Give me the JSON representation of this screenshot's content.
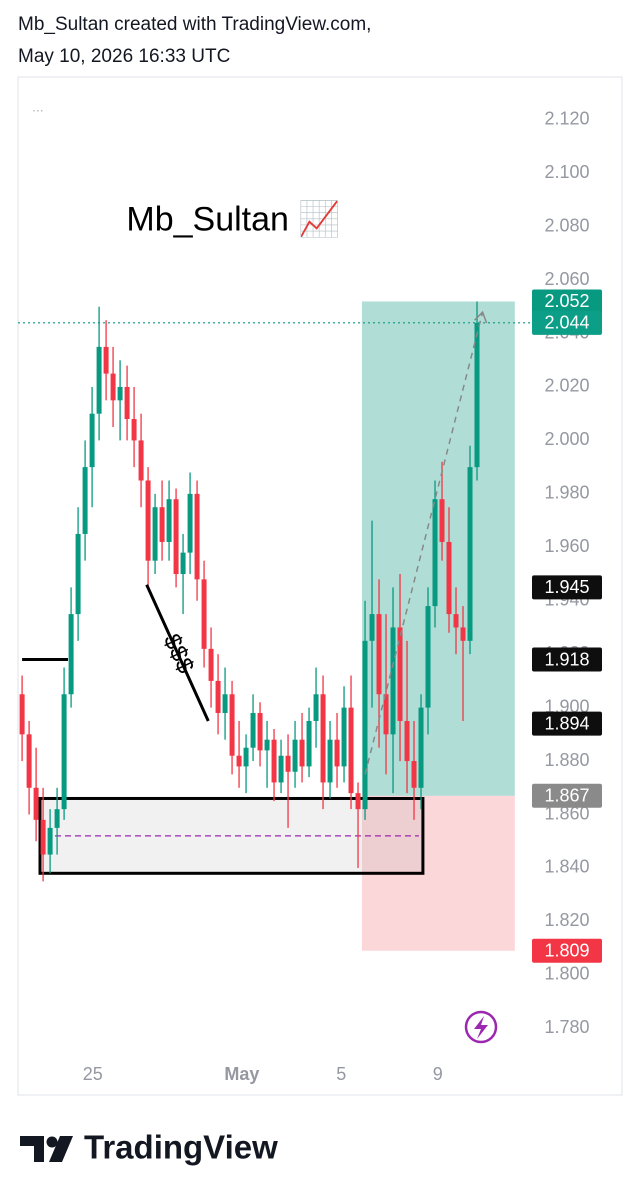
{
  "header": {
    "line1": "Mb_Sultan created with TradingView.com,",
    "line2": "May 10, 2026 16:33 UTC"
  },
  "footer": {
    "brand": "TradingView"
  },
  "chart_data": {
    "type": "candlestick",
    "up_color": "#089981",
    "down_color": "#f23645",
    "ylim": [
      1.77,
      2.136
    ],
    "yticks": [
      {
        "value": 2.12,
        "label": "2.120"
      },
      {
        "value": 2.1,
        "label": "2.100"
      },
      {
        "value": 2.08,
        "label": "2.080"
      },
      {
        "value": 2.06,
        "label": "2.060"
      },
      {
        "value": 2.04,
        "label": "2.040"
      },
      {
        "value": 2.02,
        "label": "2.020"
      },
      {
        "value": 2.0,
        "label": "2.000"
      },
      {
        "value": 1.98,
        "label": "1.980"
      },
      {
        "value": 1.96,
        "label": "1.960"
      },
      {
        "value": 1.94,
        "label": "1.940"
      },
      {
        "value": 1.92,
        "label": "1.920"
      },
      {
        "value": 1.9,
        "label": "1.900"
      },
      {
        "value": 1.88,
        "label": "1.880"
      },
      {
        "value": 1.86,
        "label": "1.860"
      },
      {
        "value": 1.84,
        "label": "1.840"
      },
      {
        "value": 1.82,
        "label": "1.820"
      },
      {
        "value": 1.8,
        "label": "1.800"
      },
      {
        "value": 1.78,
        "label": "1.780"
      }
    ],
    "xlim": [
      -0.3,
      71
    ],
    "xticks": [
      {
        "value": 10.1,
        "label": "25"
      },
      {
        "value": 31.4,
        "label": "May"
      },
      {
        "value": 45.6,
        "label": "5"
      },
      {
        "value": 59.4,
        "label": "9"
      }
    ],
    "open": [
      1.905,
      1.89,
      1.87,
      1.858,
      1.845,
      1.855,
      1.862,
      1.905,
      1.935,
      1.965,
      1.99,
      2.01,
      2.035,
      2.025,
      2.015,
      2.02,
      2.008,
      2.0,
      1.985,
      1.955,
      1.975,
      1.962,
      1.978,
      1.95,
      1.958,
      1.98,
      1.948,
      1.922,
      1.91,
      1.898,
      1.905,
      1.882,
      1.878,
      1.885,
      1.898,
      1.884,
      1.888,
      1.872,
      1.882,
      1.876,
      1.888,
      1.878,
      1.895,
      1.905,
      1.872,
      1.888,
      1.878,
      1.9,
      1.868,
      1.862,
      1.925,
      1.935,
      1.905,
      1.89,
      1.93,
      1.895,
      1.88,
      1.87,
      1.9,
      1.938,
      1.978,
      1.962,
      1.935,
      1.93,
      1.925,
      1.99
    ],
    "high": [
      1.912,
      1.895,
      1.885,
      1.87,
      1.862,
      1.87,
      1.915,
      1.945,
      1.975,
      2.0,
      2.02,
      2.05,
      2.045,
      2.035,
      2.03,
      2.028,
      2.02,
      2.01,
      1.99,
      1.98,
      1.985,
      1.985,
      1.982,
      1.965,
      1.988,
      1.985,
      1.955,
      1.93,
      1.92,
      1.915,
      1.91,
      1.895,
      1.89,
      1.905,
      1.902,
      1.895,
      1.892,
      1.888,
      1.89,
      1.895,
      1.898,
      1.9,
      1.915,
      1.912,
      1.895,
      1.898,
      1.908,
      1.912,
      1.872,
      1.94,
      1.97,
      1.948,
      1.935,
      1.945,
      1.95,
      1.925,
      1.895,
      1.905,
      1.945,
      1.985,
      1.992,
      1.975,
      1.945,
      1.938,
      1.998,
      2.052
    ],
    "low": [
      1.88,
      1.86,
      1.85,
      1.835,
      1.838,
      1.845,
      1.858,
      1.9,
      1.925,
      1.955,
      1.975,
      2.0,
      2.015,
      2.005,
      2.0,
      2.0,
      1.99,
      1.975,
      1.945,
      1.95,
      1.955,
      1.955,
      1.945,
      1.935,
      1.95,
      1.94,
      1.915,
      1.9,
      1.89,
      1.888,
      1.875,
      1.87,
      1.868,
      1.88,
      1.878,
      1.87,
      1.865,
      1.868,
      1.855,
      1.87,
      1.872,
      1.874,
      1.885,
      1.862,
      1.866,
      1.87,
      1.872,
      1.862,
      1.84,
      1.858,
      1.9,
      1.885,
      1.875,
      1.868,
      1.88,
      1.868,
      1.858,
      1.862,
      1.89,
      1.93,
      1.955,
      1.928,
      1.92,
      1.895,
      1.92,
      1.985
    ],
    "close": [
      1.89,
      1.87,
      1.858,
      1.845,
      1.855,
      1.862,
      1.905,
      1.935,
      1.965,
      1.99,
      2.01,
      2.035,
      2.025,
      2.015,
      2.02,
      2.008,
      2.0,
      1.985,
      1.955,
      1.975,
      1.962,
      1.978,
      1.95,
      1.958,
      1.98,
      1.948,
      1.922,
      1.91,
      1.898,
      1.905,
      1.882,
      1.878,
      1.885,
      1.898,
      1.884,
      1.888,
      1.872,
      1.882,
      1.876,
      1.888,
      1.878,
      1.895,
      1.905,
      1.872,
      1.888,
      1.878,
      1.9,
      1.868,
      1.862,
      1.925,
      1.935,
      1.905,
      1.89,
      1.93,
      1.895,
      1.88,
      1.87,
      1.9,
      1.938,
      1.978,
      1.962,
      1.935,
      1.93,
      1.925,
      1.99,
      2.044
    ],
    "position": {
      "x": [
        48.56,
        70.4
      ],
      "entry": 1.867,
      "target": 2.052,
      "stop": 1.809
    },
    "zone": {
      "x": [
        2.56,
        57.27
      ],
      "top": 1.866,
      "bottom": 1.838,
      "mid": 1.852
    },
    "current_line": 2.044,
    "lines": [
      {
        "x": [
          0,
          6.56
        ],
        "y": [
          1.918,
          1.918
        ]
      },
      {
        "x": [
          17.8,
          26.6
        ],
        "y": [
          1.946,
          1.895
        ]
      }
    ],
    "arrow": {
      "x": [
        49.0,
        65.8
      ],
      "y": [
        1.875,
        2.048
      ]
    },
    "annotations": [
      {
        "text": "Mb_Sultan 📈",
        "x": 14.9,
        "y": 2.082
      },
      {
        "text": "$$$",
        "x": 22.2,
        "y": 1.92
      }
    ],
    "price_labels": [
      {
        "value": 2.052,
        "color": "#089981"
      },
      {
        "value": 2.044,
        "color": "#0d9e87"
      },
      {
        "value": 1.945,
        "color": "#0e0e0e"
      },
      {
        "value": 1.918,
        "color": "#0e0e0e"
      },
      {
        "value": 1.894,
        "color": "#0e0e0e"
      },
      {
        "value": 1.867,
        "color": "#8a8a8a"
      },
      {
        "value": 1.809,
        "color": "#f23645"
      }
    ]
  }
}
